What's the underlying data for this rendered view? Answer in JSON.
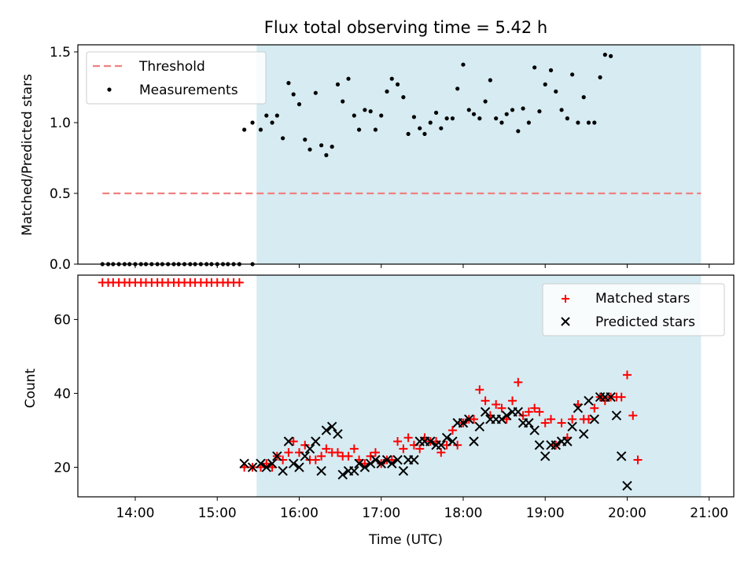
{
  "chart_data": [
    {
      "type": "scatter",
      "title": "Flux total observing time = 5.42 h",
      "xlabel": "",
      "ylabel": "Matched/Predicted stars",
      "xlim": [
        13.3,
        21.3
      ],
      "ylim": [
        0,
        1.55
      ],
      "yticks": [
        0.0,
        0.5,
        1.0,
        1.5
      ],
      "ytick_labels": [
        "0.0",
        "0.5",
        "1.0",
        "1.5"
      ],
      "shaded_region": [
        15.48,
        20.9
      ],
      "shaded_color": "#add8e6",
      "threshold": {
        "label": "Threshold",
        "value": 0.5,
        "x_range": [
          13.6,
          20.9
        ],
        "color": "#f08080"
      },
      "legend": {
        "position": "top-left",
        "entries": [
          "Threshold",
          "Measurements"
        ]
      },
      "series": [
        {
          "name": "Measurements",
          "color": "#000000",
          "points": [
            [
              13.6,
              0
            ],
            [
              13.67,
              0
            ],
            [
              13.73,
              0
            ],
            [
              13.8,
              0
            ],
            [
              13.87,
              0
            ],
            [
              13.93,
              0
            ],
            [
              14.0,
              0
            ],
            [
              14.07,
              0
            ],
            [
              14.13,
              0
            ],
            [
              14.2,
              0
            ],
            [
              14.27,
              0
            ],
            [
              14.33,
              0
            ],
            [
              14.4,
              0
            ],
            [
              14.47,
              0
            ],
            [
              14.53,
              0
            ],
            [
              14.6,
              0
            ],
            [
              14.67,
              0
            ],
            [
              14.73,
              0
            ],
            [
              14.8,
              0
            ],
            [
              14.87,
              0
            ],
            [
              14.93,
              0
            ],
            [
              15.0,
              0
            ],
            [
              15.07,
              0
            ],
            [
              15.13,
              0
            ],
            [
              15.2,
              0
            ],
            [
              15.27,
              0
            ],
            [
              15.43,
              0
            ],
            [
              15.33,
              0.95
            ],
            [
              15.43,
              1.0
            ],
            [
              15.53,
              0.95
            ],
            [
              15.6,
              1.05
            ],
            [
              15.67,
              1.0
            ],
            [
              15.73,
              1.05
            ],
            [
              15.8,
              0.89
            ],
            [
              15.87,
              1.28
            ],
            [
              15.93,
              1.2
            ],
            [
              16.0,
              1.13
            ],
            [
              16.07,
              0.88
            ],
            [
              16.13,
              0.81
            ],
            [
              16.2,
              1.21
            ],
            [
              16.27,
              0.84
            ],
            [
              16.33,
              0.77
            ],
            [
              16.4,
              0.83
            ],
            [
              16.47,
              1.27
            ],
            [
              16.53,
              1.15
            ],
            [
              16.6,
              1.31
            ],
            [
              16.67,
              1.05
            ],
            [
              16.73,
              0.95
            ],
            [
              16.8,
              1.09
            ],
            [
              16.87,
              1.08
            ],
            [
              16.93,
              0.95
            ],
            [
              17.0,
              1.05
            ],
            [
              17.07,
              1.22
            ],
            [
              17.13,
              1.31
            ],
            [
              17.2,
              1.27
            ],
            [
              17.27,
              1.18
            ],
            [
              17.33,
              0.92
            ],
            [
              17.4,
              1.04
            ],
            [
              17.47,
              0.96
            ],
            [
              17.53,
              0.92
            ],
            [
              17.6,
              1.0
            ],
            [
              17.67,
              1.07
            ],
            [
              17.73,
              0.96
            ],
            [
              17.8,
              1.03
            ],
            [
              17.87,
              1.03
            ],
            [
              17.93,
              1.24
            ],
            [
              18.0,
              1.41
            ],
            [
              18.07,
              1.09
            ],
            [
              18.13,
              1.06
            ],
            [
              18.2,
              1.03
            ],
            [
              18.27,
              1.15
            ],
            [
              18.33,
              1.3
            ],
            [
              18.4,
              1.03
            ],
            [
              18.47,
              1.0
            ],
            [
              18.53,
              1.06
            ],
            [
              18.6,
              1.09
            ],
            [
              18.67,
              0.94
            ],
            [
              18.73,
              1.1
            ],
            [
              18.8,
              1.0
            ],
            [
              18.87,
              1.39
            ],
            [
              18.93,
              1.08
            ],
            [
              19.0,
              1.27
            ],
            [
              19.07,
              1.37
            ],
            [
              19.13,
              1.22
            ],
            [
              19.2,
              1.09
            ],
            [
              19.27,
              1.03
            ],
            [
              19.33,
              1.34
            ],
            [
              19.4,
              1.0
            ],
            [
              19.47,
              1.18
            ],
            [
              19.53,
              1.0
            ],
            [
              19.6,
              1.0
            ],
            [
              19.67,
              1.32
            ],
            [
              19.73,
              1.48
            ],
            [
              19.8,
              1.47
            ]
          ]
        }
      ]
    },
    {
      "type": "scatter",
      "title": "",
      "xlabel": "Time (UTC)",
      "ylabel": "Count",
      "xlim": [
        13.3,
        21.3
      ],
      "ylim": [
        12,
        72
      ],
      "yticks": [
        20,
        40,
        60
      ],
      "ytick_labels": [
        "20",
        "40",
        "60"
      ],
      "xticks": [
        14,
        15,
        16,
        17,
        18,
        19,
        20,
        21
      ],
      "xtick_labels": [
        "14:00",
        "15:00",
        "16:00",
        "17:00",
        "18:00",
        "19:00",
        "20:00",
        "21:00"
      ],
      "shaded_region": [
        15.48,
        20.9
      ],
      "shaded_color": "#add8e6",
      "legend": {
        "position": "top-right",
        "entries": [
          "Matched stars",
          "Predicted stars"
        ]
      },
      "series": [
        {
          "name": "Matched stars",
          "marker": "+",
          "color": "#ff0000",
          "points": [
            [
              13.6,
              70
            ],
            [
              13.67,
              70
            ],
            [
              13.73,
              70
            ],
            [
              13.8,
              70
            ],
            [
              13.87,
              70
            ],
            [
              13.93,
              70
            ],
            [
              14.0,
              70
            ],
            [
              14.07,
              70
            ],
            [
              14.13,
              70
            ],
            [
              14.2,
              70
            ],
            [
              14.27,
              70
            ],
            [
              14.33,
              70
            ],
            [
              14.4,
              70
            ],
            [
              14.47,
              70
            ],
            [
              14.53,
              70
            ],
            [
              14.6,
              70
            ],
            [
              14.67,
              70
            ],
            [
              14.73,
              70
            ],
            [
              14.8,
              70
            ],
            [
              14.87,
              70
            ],
            [
              14.93,
              70
            ],
            [
              15.0,
              70
            ],
            [
              15.07,
              70
            ],
            [
              15.13,
              70
            ],
            [
              15.2,
              70
            ],
            [
              15.27,
              70
            ],
            [
              15.33,
              20
            ],
            [
              15.43,
              20
            ],
            [
              15.53,
              20
            ],
            [
              15.6,
              21
            ],
            [
              15.67,
              20
            ],
            [
              15.73,
              23
            ],
            [
              15.8,
              22
            ],
            [
              15.87,
              24
            ],
            [
              15.93,
              27
            ],
            [
              16.0,
              24
            ],
            [
              16.07,
              26
            ],
            [
              16.13,
              22
            ],
            [
              16.2,
              22
            ],
            [
              16.27,
              23
            ],
            [
              16.33,
              25
            ],
            [
              16.4,
              24
            ],
            [
              16.47,
              24
            ],
            [
              16.53,
              23
            ],
            [
              16.6,
              23
            ],
            [
              16.67,
              25
            ],
            [
              16.73,
              22
            ],
            [
              16.8,
              21
            ],
            [
              16.87,
              23
            ],
            [
              16.93,
              24
            ],
            [
              17.0,
              21
            ],
            [
              17.07,
              22
            ],
            [
              17.13,
              22
            ],
            [
              17.2,
              27
            ],
            [
              17.27,
              25
            ],
            [
              17.33,
              28
            ],
            [
              17.4,
              26
            ],
            [
              17.47,
              25
            ],
            [
              17.53,
              28
            ],
            [
              17.6,
              27
            ],
            [
              17.67,
              27
            ],
            [
              17.73,
              24
            ],
            [
              17.8,
              26
            ],
            [
              17.87,
              30
            ],
            [
              17.93,
              26
            ],
            [
              18.0,
              32
            ],
            [
              18.07,
              33
            ],
            [
              18.13,
              33
            ],
            [
              18.2,
              41
            ],
            [
              18.27,
              38
            ],
            [
              18.33,
              34
            ],
            [
              18.4,
              37
            ],
            [
              18.47,
              36
            ],
            [
              18.53,
              33
            ],
            [
              18.6,
              38
            ],
            [
              18.67,
              43
            ],
            [
              18.73,
              34
            ],
            [
              18.8,
              35
            ],
            [
              18.87,
              36
            ],
            [
              18.93,
              35
            ],
            [
              19.0,
              32
            ],
            [
              19.07,
              33
            ],
            [
              19.13,
              26
            ],
            [
              19.2,
              32
            ],
            [
              19.27,
              28
            ],
            [
              19.33,
              33
            ],
            [
              19.4,
              37
            ],
            [
              19.47,
              33
            ],
            [
              19.53,
              33
            ],
            [
              19.6,
              36
            ],
            [
              19.67,
              39
            ],
            [
              19.73,
              38
            ],
            [
              19.8,
              39
            ],
            [
              19.87,
              39
            ],
            [
              19.93,
              39
            ],
            [
              20.0,
              45
            ],
            [
              20.07,
              34
            ],
            [
              20.13,
              22
            ]
          ]
        },
        {
          "name": "Predicted stars",
          "marker": "x",
          "color": "#000000",
          "points": [
            [
              15.33,
              21
            ],
            [
              15.43,
              20
            ],
            [
              15.53,
              21
            ],
            [
              15.6,
              20
            ],
            [
              15.67,
              21
            ],
            [
              15.73,
              23
            ],
            [
              15.8,
              19
            ],
            [
              15.87,
              27
            ],
            [
              15.93,
              21
            ],
            [
              16.0,
              20
            ],
            [
              16.07,
              23
            ],
            [
              16.13,
              25
            ],
            [
              16.2,
              27
            ],
            [
              16.27,
              19
            ],
            [
              16.33,
              30
            ],
            [
              16.4,
              31
            ],
            [
              16.47,
              29
            ],
            [
              16.53,
              18
            ],
            [
              16.6,
              19
            ],
            [
              16.67,
              19
            ],
            [
              16.73,
              21
            ],
            [
              16.8,
              20
            ],
            [
              16.87,
              21
            ],
            [
              16.93,
              22
            ],
            [
              17.0,
              21
            ],
            [
              17.07,
              22
            ],
            [
              17.13,
              21
            ],
            [
              17.2,
              22
            ],
            [
              17.27,
              19
            ],
            [
              17.33,
              22
            ],
            [
              17.4,
              22
            ],
            [
              17.47,
              27
            ],
            [
              17.53,
              27
            ],
            [
              17.6,
              27
            ],
            [
              17.67,
              26
            ],
            [
              17.73,
              26
            ],
            [
              17.8,
              28
            ],
            [
              17.87,
              27
            ],
            [
              17.93,
              32
            ],
            [
              18.0,
              32
            ],
            [
              18.07,
              33
            ],
            [
              18.13,
              27
            ],
            [
              18.2,
              31
            ],
            [
              18.27,
              35
            ],
            [
              18.33,
              33
            ],
            [
              18.4,
              33
            ],
            [
              18.47,
              33
            ],
            [
              18.53,
              34
            ],
            [
              18.6,
              35
            ],
            [
              18.67,
              35
            ],
            [
              18.73,
              32
            ],
            [
              18.8,
              32
            ],
            [
              18.87,
              30
            ],
            [
              18.93,
              26
            ],
            [
              19.0,
              23
            ],
            [
              19.07,
              26
            ],
            [
              19.13,
              26
            ],
            [
              19.2,
              27
            ],
            [
              19.27,
              27
            ],
            [
              19.33,
              31
            ],
            [
              19.4,
              36
            ],
            [
              19.47,
              29
            ],
            [
              19.53,
              38
            ],
            [
              19.6,
              33
            ],
            [
              19.67,
              39
            ],
            [
              19.73,
              39
            ],
            [
              19.8,
              39
            ],
            [
              19.87,
              34
            ],
            [
              19.93,
              23
            ],
            [
              20.0,
              15
            ]
          ]
        }
      ]
    }
  ]
}
